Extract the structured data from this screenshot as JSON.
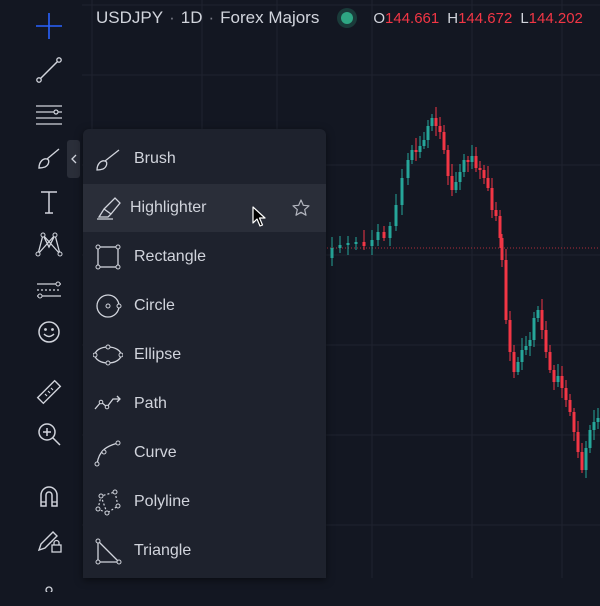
{
  "header": {
    "symbol": "USDJPY",
    "interval": "1D",
    "exchange": "Forex Majors",
    "open_label": "O",
    "open_value": "144.661",
    "high_label": "H",
    "high_value": "144.672",
    "low_label": "L",
    "low_value": "144.202"
  },
  "toolbar": {
    "items": [
      "crosshair",
      "trend-line",
      "horizontal-lines",
      "brush",
      "text",
      "patterns",
      "prediction",
      "emoji",
      "ruler",
      "zoom-in",
      "magnet",
      "lock-drawings"
    ]
  },
  "menu": {
    "items": [
      {
        "label": "Brush",
        "icon": "brush-icon"
      },
      {
        "label": "Highlighter",
        "icon": "highlighter-icon"
      },
      {
        "label": "Rectangle",
        "icon": "rectangle-icon"
      },
      {
        "label": "Circle",
        "icon": "circle-icon"
      },
      {
        "label": "Ellipse",
        "icon": "ellipse-icon"
      },
      {
        "label": "Path",
        "icon": "path-icon"
      },
      {
        "label": "Curve",
        "icon": "curve-icon"
      },
      {
        "label": "Polyline",
        "icon": "polyline-icon"
      },
      {
        "label": "Triangle",
        "icon": "triangle-icon"
      }
    ],
    "hovered_item": "Highlighter"
  },
  "colors": {
    "background": "#131722",
    "panel": "#1e222d",
    "hover": "#2a2e39",
    "text": "#d1d4dc",
    "up": "#26a69a",
    "down": "#f23645",
    "status": "#2ea683"
  }
}
